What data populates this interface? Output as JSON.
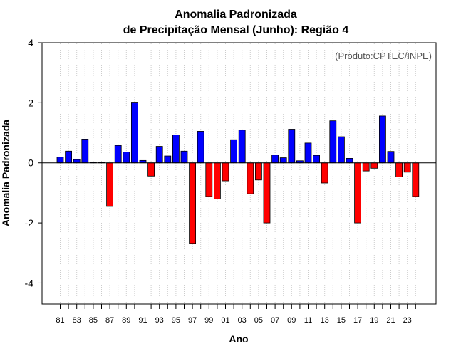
{
  "chart_data": {
    "type": "bar",
    "title": "Anomalia Padronizada",
    "subtitle": "de Precipitação Mensal (Junho): Região 4",
    "xlabel": "Ano",
    "ylabel": "Anomalia Padronizada",
    "annotation": "(Produto:CPTEC/INPE)",
    "ylim": [
      -4.7,
      4
    ],
    "yticks": [
      -4,
      -2,
      0,
      2,
      4
    ],
    "ytick_labels": [
      "-4",
      "-2",
      "0",
      "2",
      "4"
    ],
    "xtick_labels": [
      "81",
      "83",
      "85",
      "87",
      "89",
      "91",
      "93",
      "95",
      "97",
      "99",
      "01",
      "03",
      "05",
      "07",
      "09",
      "11",
      "13",
      "15",
      "17",
      "19",
      "21",
      "23"
    ],
    "categories": [
      "1981",
      "1982",
      "1983",
      "1984",
      "1985",
      "1986",
      "1987",
      "1988",
      "1989",
      "1990",
      "1991",
      "1992",
      "1993",
      "1994",
      "1995",
      "1996",
      "1997",
      "1998",
      "1999",
      "2000",
      "2001",
      "2002",
      "2003",
      "2004",
      "2005",
      "2006",
      "2007",
      "2008",
      "2009",
      "2010",
      "2011",
      "2012",
      "2013",
      "2014",
      "2015",
      "2016",
      "2017",
      "2018",
      "2019",
      "2020",
      "2021",
      "2022",
      "2023",
      "2024"
    ],
    "values": [
      0.19,
      0.39,
      0.11,
      0.79,
      0.02,
      0.02,
      -1.45,
      0.58,
      0.36,
      2.02,
      0.08,
      -0.44,
      0.55,
      0.23,
      0.93,
      0.39,
      -2.68,
      1.05,
      -1.12,
      -1.2,
      -0.6,
      0.77,
      1.09,
      -1.03,
      -0.57,
      -2.0,
      0.26,
      0.17,
      1.12,
      0.07,
      0.66,
      0.25,
      -0.67,
      1.4,
      0.87,
      0.15,
      -2.0,
      -0.27,
      -0.18,
      1.56,
      0.38,
      -0.47,
      -0.31,
      -1.12
    ],
    "colors": {
      "positive": "#0000ff",
      "negative": "#ff0000",
      "outline": "#000000",
      "grid": "#cccccc"
    },
    "grid": true
  }
}
